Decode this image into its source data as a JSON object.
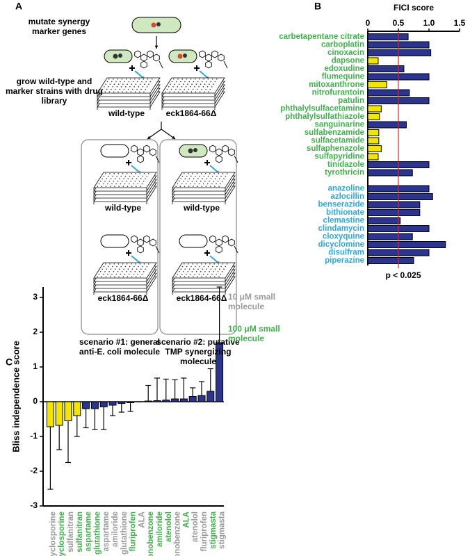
{
  "diagram": {
    "panel_label": "A",
    "step1": "mutate synergy marker genes",
    "step2": "grow wild-type and marker strains with drug library",
    "plate_labels": [
      "wild-type",
      "eck1864-66Δ"
    ],
    "scenarios": [
      {
        "plate_labels": [
          "wild-type",
          "eck1864-66Δ"
        ],
        "caption": "scenario #1: general anti-E. coli molecule"
      },
      {
        "plate_labels": [
          "wild-type",
          "eck1864-66Δ"
        ],
        "caption": "scenario #2: putative TMP synergizing molecule"
      }
    ]
  },
  "chart_data": [
    {
      "type": "barh",
      "panel_label": "B",
      "title": "FICI score",
      "categories": [
        "carbetapentane citrate",
        "carboplatin",
        "cinoxacin",
        "dapsone",
        "edoxudine",
        "flumequine",
        "mitoxanthrone",
        "nitrofurantoin",
        "patulin",
        "phthalylsulfacetamine",
        "phthalylsulfathiazole",
        "sanguinarine",
        "sulfabenzamide",
        "sulfacetamide",
        "sulfaphenazole",
        "sulfapyridine",
        "tinidazole",
        "tyrothricin",
        null,
        "anazoline",
        "azlocillin",
        "benserazide",
        "bithionate",
        "clemastine",
        "clindamycin",
        "cloxyquine",
        "dicyclomine",
        "disulfram",
        "piperazine"
      ],
      "category_colors": [
        "#3db54a",
        "#3db54a",
        "#3db54a",
        "#3db54a",
        "#3db54a",
        "#3db54a",
        "#3db54a",
        "#3db54a",
        "#3db54a",
        "#3db54a",
        "#3db54a",
        "#3db54a",
        "#3db54a",
        "#3db54a",
        "#3db54a",
        "#3db54a",
        "#3db54a",
        "#3db54a",
        null,
        "#29abe2",
        "#29abe2",
        "#29abe2",
        "#29abe2",
        "#29abe2",
        "#29abe2",
        "#29abe2",
        "#29abe2",
        "#29abe2",
        "#29abe2"
      ],
      "values": [
        0.66,
        1.0,
        1.03,
        0.17,
        0.59,
        1.0,
        0.31,
        0.68,
        1.0,
        0.22,
        0.19,
        0.63,
        0.18,
        0.18,
        0.22,
        0.17,
        1.0,
        0.73,
        null,
        1.0,
        1.06,
        0.85,
        0.85,
        0.53,
        1.0,
        0.73,
        1.27,
        1.0,
        0.75
      ],
      "colors": [
        "#2b3590",
        "#2b3590",
        "#2b3590",
        "#f2e600",
        "#2b3590",
        "#2b3590",
        "#f2e600",
        "#2b3590",
        "#2b3590",
        "#f2e600",
        "#f2e600",
        "#2b3590",
        "#f2e600",
        "#f2e600",
        "#f2e600",
        "#f2e600",
        "#2b3590",
        "#2b3590",
        null,
        "#2b3590",
        "#2b3590",
        "#2b3590",
        "#2b3590",
        "#2b3590",
        "#2b3590",
        "#2b3590",
        "#2b3590",
        "#2b3590",
        "#2b3590"
      ],
      "xlim": [
        0,
        1.5
      ],
      "xticks": [
        0,
        0.5,
        {
          "value": 1,
          "label": "1.0"
        },
        1.5
      ],
      "threshold": 0.5,
      "threshold_color": "#e0242a",
      "annotation": "p < 0.025"
    },
    {
      "type": "bar_error",
      "panel_label": "C",
      "ylabel": "Bliss independence score",
      "categories": [
        "cyclosporine",
        "cyclosporine",
        "sulfanitran",
        "sulfanitran",
        "aspartame",
        "glutathione",
        "aspartame",
        "amiloride",
        "glutathione",
        "fluriprofen",
        "ALA",
        "monobenzone",
        "amiloride",
        "atenolol",
        "monobenzone",
        "ALA",
        "atenolol",
        "fluriprofen",
        "stigmasta",
        "stigmasta"
      ],
      "category_groups": [
        0,
        1,
        0,
        1,
        1,
        1,
        0,
        0,
        0,
        1,
        0,
        1,
        1,
        1,
        0,
        1,
        0,
        0,
        1,
        0
      ],
      "groups": [
        {
          "name": "10 μM small molecule",
          "color": "#9a9a9a"
        },
        {
          "name": "100 μM small molecule",
          "color": "#3db54a"
        }
      ],
      "values": [
        -0.72,
        -0.68,
        -0.55,
        -0.4,
        -0.2,
        -0.2,
        -0.15,
        -0.1,
        -0.05,
        -0.03,
        0,
        0.02,
        0.03,
        0.05,
        0.08,
        0.08,
        0.15,
        0.18,
        0.3,
        1.7
      ],
      "errors": [
        1.8,
        0.7,
        1.2,
        0.6,
        0.55,
        0.6,
        0.65,
        0.3,
        0.25,
        0.25,
        0,
        0.45,
        0.65,
        0.6,
        0.55,
        0.6,
        0.25,
        0.4,
        0.65,
        1.6
      ],
      "colors": [
        "#f2e600",
        "#f2e600",
        "#f2e600",
        "#f2e600",
        "#2b3590",
        "#2b3590",
        "#2b3590",
        "#2b3590",
        "#2b3590",
        "#2b3590",
        "#2b3590",
        "#2b3590",
        "#2b3590",
        "#2b3590",
        "#2b3590",
        "#2b3590",
        "#2b3590",
        "#2b3590",
        "#2b3590",
        "#2b3590"
      ],
      "ylim": [
        -3,
        3.3
      ],
      "yticks": [
        -3,
        -2,
        -1,
        0,
        1,
        2,
        3
      ]
    }
  ]
}
